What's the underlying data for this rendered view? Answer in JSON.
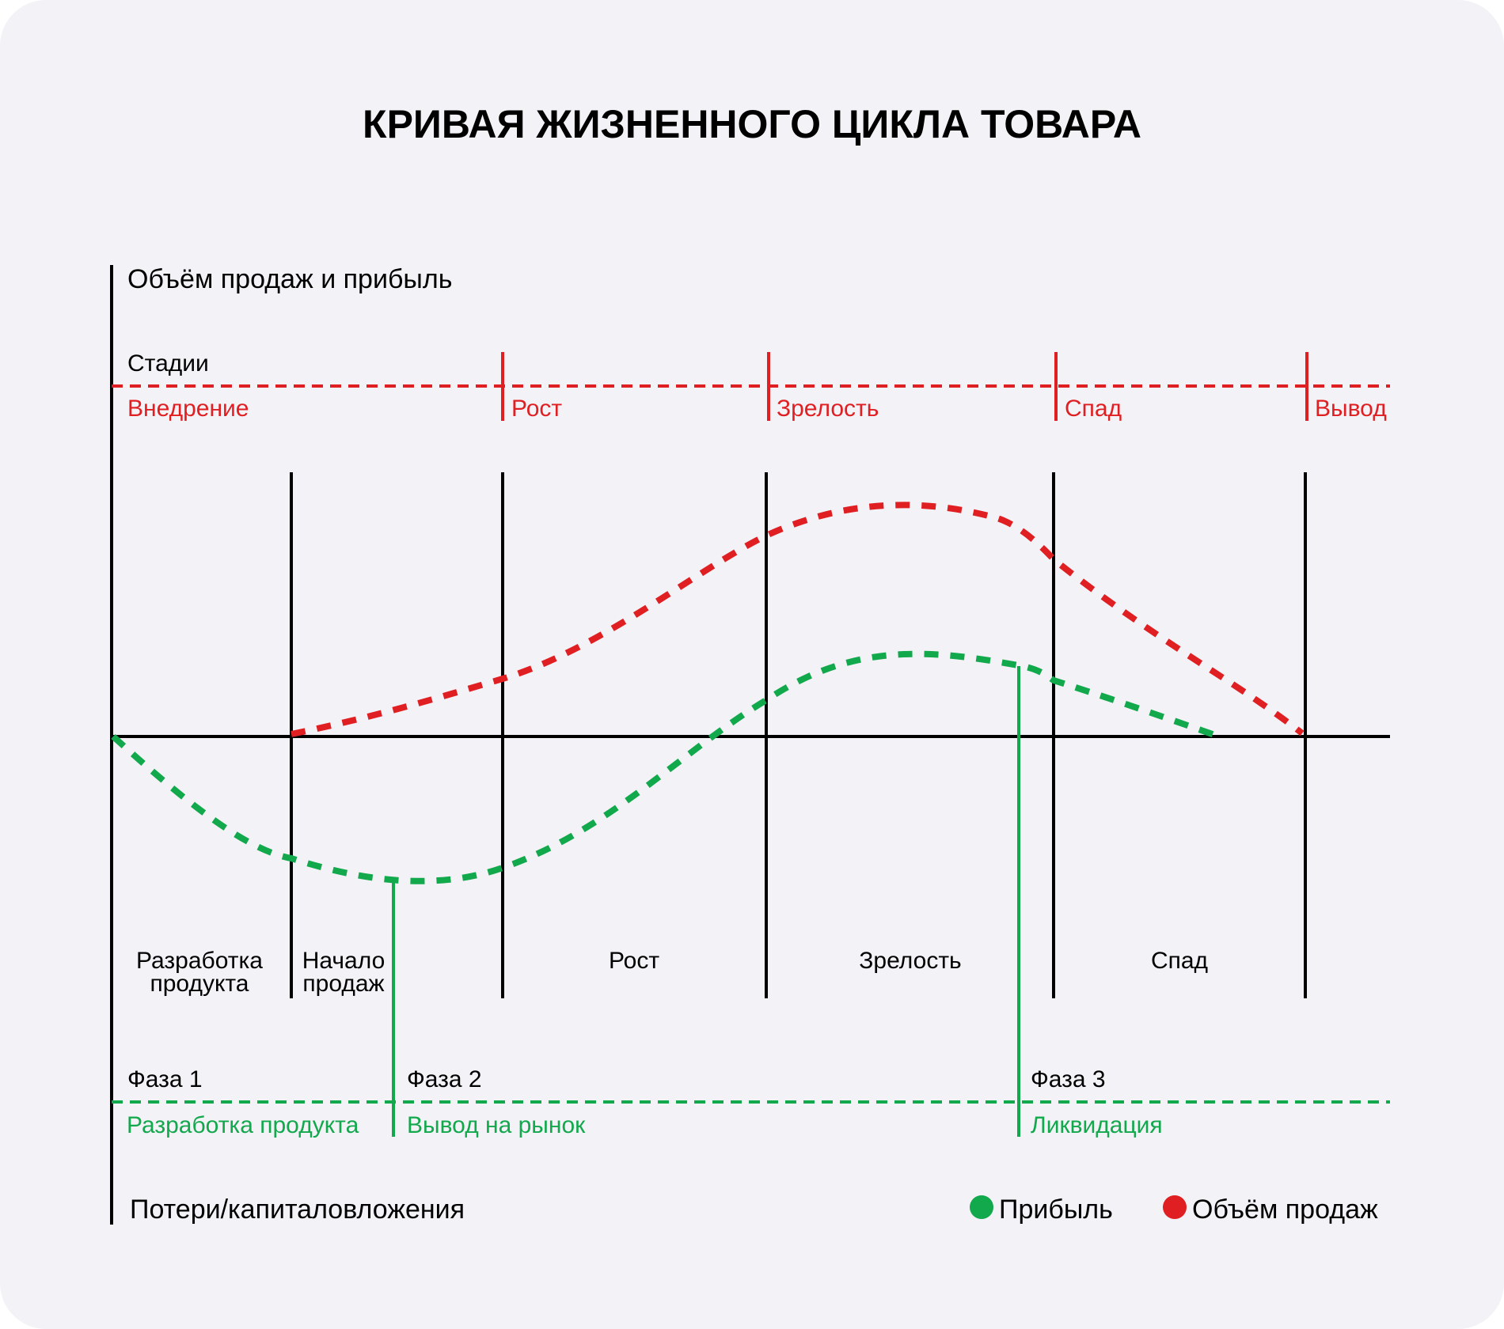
{
  "title": "КРИВАЯ ЖИЗНЕННОГО ЦИКЛА ТОВАРА",
  "y_axis_top_label": "Объём продаж и прибыль",
  "y_axis_bottom_label": "Потери/капиталовложения",
  "stages_row": {
    "label": "Стадии",
    "stages": [
      "Внедрение",
      "Рост",
      "Зрелость",
      "Спад",
      "Вывод"
    ]
  },
  "periods": [
    [
      "Разработка",
      "продукта"
    ],
    [
      "Начало",
      "продаж"
    ],
    [
      "Рост"
    ],
    [
      "Зрелость"
    ],
    [
      "Спад"
    ]
  ],
  "phases": [
    {
      "label": "Фаза 1",
      "name": "Разработка продукта"
    },
    {
      "label": "Фаза 2",
      "name": "Вывод на рынок"
    },
    {
      "label": "Фаза 3",
      "name": "Ликвидация"
    }
  ],
  "legend": [
    {
      "name": "Прибыль",
      "color": "#12a84c"
    },
    {
      "name": "Объём продаж",
      "color": "#e01f22"
    }
  ],
  "colors": {
    "sales": "#e01f22",
    "profit": "#12a84c",
    "axis": "#000000",
    "background": "#f3f2f7"
  }
}
